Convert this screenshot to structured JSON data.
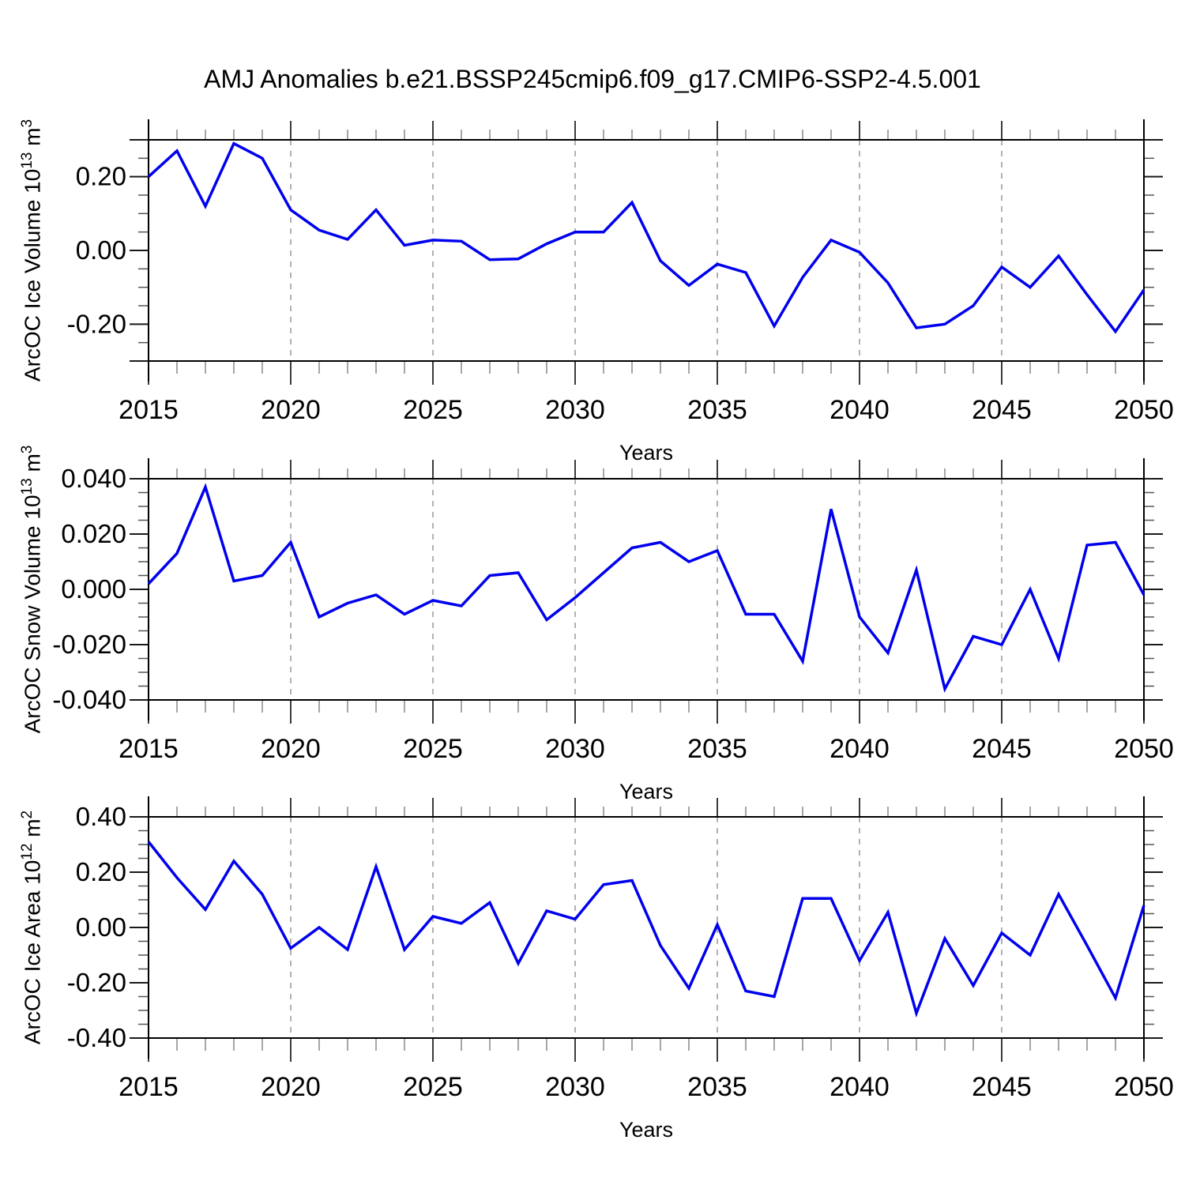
{
  "title": "AMJ Anomalies b.e21.BSSP245cmip6.f09_g17.CMIP6-SSP2-4.5.001",
  "xlabel": "Years",
  "colors": {
    "line": "#0000EE",
    "axis": "#000000",
    "grid": "#999999",
    "x_tick_major": "#3c3c3c",
    "x_tick_minor": "#888888",
    "y_tick_major": "#1a1a1a",
    "y_tick_minor": "#555555",
    "text": "#000000"
  },
  "x_axis": {
    "start": 2015,
    "end": 2050,
    "major_ticks": [
      2015,
      2020,
      2025,
      2030,
      2035,
      2040,
      2045,
      2050
    ],
    "tick_labels": [
      "2015",
      "2020",
      "2025",
      "2030",
      "2035",
      "2040",
      "2045",
      "2050"
    ],
    "minor_step": 1,
    "grid_years": [
      2020,
      2025,
      2030,
      2035,
      2040,
      2045
    ]
  },
  "chart_data": [
    {
      "type": "line",
      "title": "",
      "ylabel": "ArcOC Ice Volume 10^13 m^3",
      "ylabel_prefix": "ArcOC Ice Volume 10",
      "ylabel_exp": "13",
      "ylabel_unit": " m",
      "ylabel_unit_exp": "3",
      "xlabel": "Years",
      "ylim": [
        -0.3,
        0.3
      ],
      "y_major": [
        0.2,
        0.0,
        -0.2
      ],
      "y_tick_labels": [
        "0.20",
        "0.00",
        "-0.20"
      ],
      "y_edge_ticks": [
        0.3,
        -0.3
      ],
      "y_minor_step": 0.05,
      "grid": "vertical-dashed",
      "legend": "none",
      "x": [
        2015,
        2016,
        2017,
        2018,
        2019,
        2020,
        2021,
        2022,
        2023,
        2024,
        2025,
        2026,
        2027,
        2028,
        2029,
        2030,
        2031,
        2032,
        2033,
        2034,
        2035,
        2036,
        2037,
        2038,
        2039,
        2040,
        2041,
        2042,
        2043,
        2044,
        2045,
        2046,
        2047,
        2048,
        2049,
        2050
      ],
      "values": [
        0.2,
        0.27,
        0.12,
        0.29,
        0.25,
        0.11,
        0.055,
        0.03,
        0.11,
        0.014,
        0.028,
        0.025,
        -0.025,
        -0.023,
        0.018,
        0.05,
        0.05,
        0.13,
        -0.028,
        -0.095,
        -0.037,
        -0.06,
        -0.205,
        -0.073,
        0.028,
        -0.005,
        -0.088,
        -0.21,
        -0.2,
        -0.15,
        -0.045,
        -0.1,
        -0.015,
        -0.12,
        -0.22,
        -0.107
      ]
    },
    {
      "type": "line",
      "title": "",
      "ylabel": "ArcOC Snow Volume 10^13 m^3",
      "ylabel_prefix": "ArcOC Snow Volume 10",
      "ylabel_exp": "13",
      "ylabel_unit": " m",
      "ylabel_unit_exp": "3",
      "xlabel": "Years",
      "ylim": [
        -0.04,
        0.04
      ],
      "y_major": [
        0.04,
        0.02,
        0.0,
        -0.02,
        -0.04
      ],
      "y_tick_labels": [
        "0.040",
        "0.020",
        "0.000",
        "-0.020",
        "-0.040"
      ],
      "y_edge_ticks": [],
      "y_minor_step": 0.005,
      "grid": "vertical-dashed",
      "legend": "none",
      "x": [
        2015,
        2016,
        2017,
        2018,
        2019,
        2020,
        2021,
        2022,
        2023,
        2024,
        2025,
        2026,
        2027,
        2028,
        2029,
        2030,
        2031,
        2032,
        2033,
        2034,
        2035,
        2036,
        2037,
        2038,
        2039,
        2040,
        2041,
        2042,
        2043,
        2044,
        2045,
        2046,
        2047,
        2048,
        2049,
        2050
      ],
      "values": [
        0.002,
        0.013,
        0.037,
        0.003,
        0.005,
        0.017,
        -0.01,
        -0.005,
        -0.002,
        -0.009,
        -0.004,
        -0.006,
        0.005,
        0.006,
        -0.011,
        -0.003,
        0.006,
        0.015,
        0.017,
        0.01,
        0.014,
        -0.009,
        -0.009,
        -0.026,
        0.029,
        -0.01,
        -0.023,
        0.007,
        -0.036,
        -0.017,
        -0.02,
        0.0,
        -0.025,
        0.016,
        0.017,
        -0.002
      ]
    },
    {
      "type": "line",
      "title": "",
      "ylabel": "ArcOC Ice Area 10^12 m^2",
      "ylabel_prefix": "ArcOC Ice Area 10",
      "ylabel_exp": "12",
      "ylabel_unit": " m",
      "ylabel_unit_exp": "2",
      "xlabel": "Years",
      "ylim": [
        -0.4,
        0.4
      ],
      "y_major": [
        0.4,
        0.2,
        0.0,
        -0.2,
        -0.4
      ],
      "y_tick_labels": [
        "0.40",
        "0.20",
        "0.00",
        "-0.20",
        "-0.40"
      ],
      "y_edge_ticks": [],
      "y_minor_step": 0.05,
      "grid": "vertical-dashed",
      "legend": "none",
      "x": [
        2015,
        2016,
        2017,
        2018,
        2019,
        2020,
        2021,
        2022,
        2023,
        2024,
        2025,
        2026,
        2027,
        2028,
        2029,
        2030,
        2031,
        2032,
        2033,
        2034,
        2035,
        2036,
        2037,
        2038,
        2039,
        2040,
        2041,
        2042,
        2043,
        2044,
        2045,
        2046,
        2047,
        2048,
        2049,
        2050
      ],
      "values": [
        0.31,
        0.18,
        0.065,
        0.24,
        0.12,
        -0.075,
        0.0,
        -0.08,
        0.22,
        -0.08,
        0.04,
        0.015,
        0.09,
        -0.13,
        0.06,
        0.03,
        0.155,
        0.17,
        -0.065,
        -0.22,
        0.01,
        -0.23,
        -0.25,
        0.105,
        0.105,
        -0.12,
        0.055,
        -0.31,
        -0.04,
        -0.21,
        -0.02,
        -0.1,
        0.12,
        -0.065,
        -0.255,
        0.08
      ]
    }
  ]
}
